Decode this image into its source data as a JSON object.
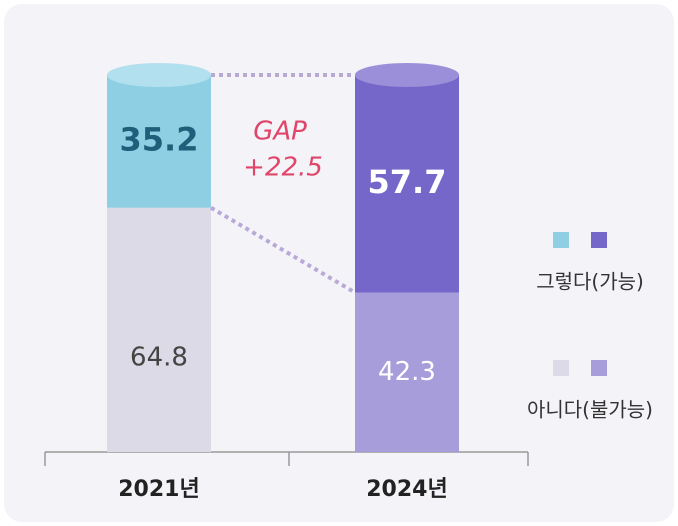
{
  "chart_data": {
    "type": "stacked-cylinder-bar",
    "categories": [
      "2021년",
      "2024년"
    ],
    "series": [
      {
        "name": "그렇다(가능)",
        "colors": [
          "#8ecfe3",
          "#7566c9"
        ],
        "values": [
          35.2,
          57.7
        ]
      },
      {
        "name": "아니다(불가능)",
        "colors": [
          "#dcdae6",
          "#a89ddb"
        ],
        "values": [
          64.8,
          42.3
        ]
      }
    ],
    "annotations": [
      "GAP",
      "+22.5"
    ],
    "ylim": [
      0,
      100
    ]
  }
}
